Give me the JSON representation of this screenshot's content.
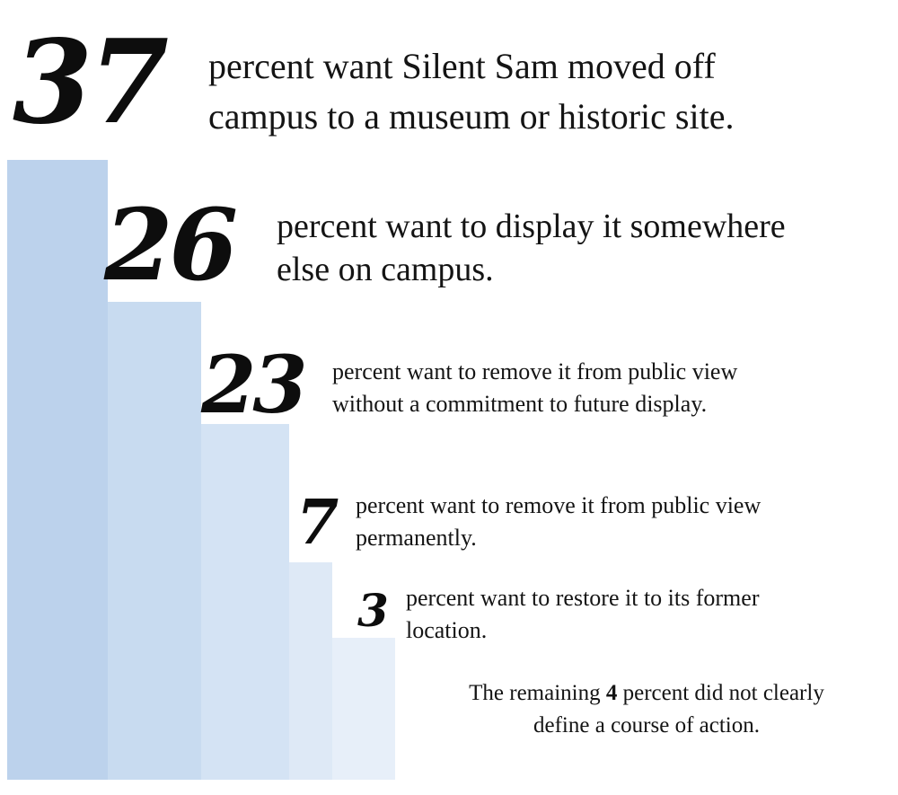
{
  "chart_data": {
    "type": "bar",
    "unit": "percent",
    "colors": [
      "#bcd2ec",
      "#c8dbf0",
      "#d4e3f4",
      "#dee9f6",
      "#e7eff9"
    ],
    "categories": [
      "percent want Silent Sam moved off campus to a museum or historic site.",
      "percent want to display it somewhere else on campus.",
      "percent want to remove it from public view without a commitment to future display.",
      "percent want to remove it from public view permanently.",
      "percent want to restore it to its former location."
    ],
    "values": [
      37,
      26,
      23,
      7,
      3
    ],
    "display_numbers": [
      "37",
      "26",
      "23",
      "7",
      "3"
    ],
    "lines": [
      [
        "percent want Silent Sam moved off",
        "campus to a museum or historic site."
      ],
      [
        "percent want to display it somewhere",
        "else on campus."
      ],
      [
        "percent want to remove it from public view",
        "without a commitment to future display."
      ],
      [
        "percent want to remove it from public view",
        "permanently."
      ],
      [
        "percent want to restore it to its former",
        "location."
      ]
    ],
    "footnote": {
      "before": "The remaining ",
      "number": "4",
      "after": " percent did not clearly define a course of action."
    }
  }
}
